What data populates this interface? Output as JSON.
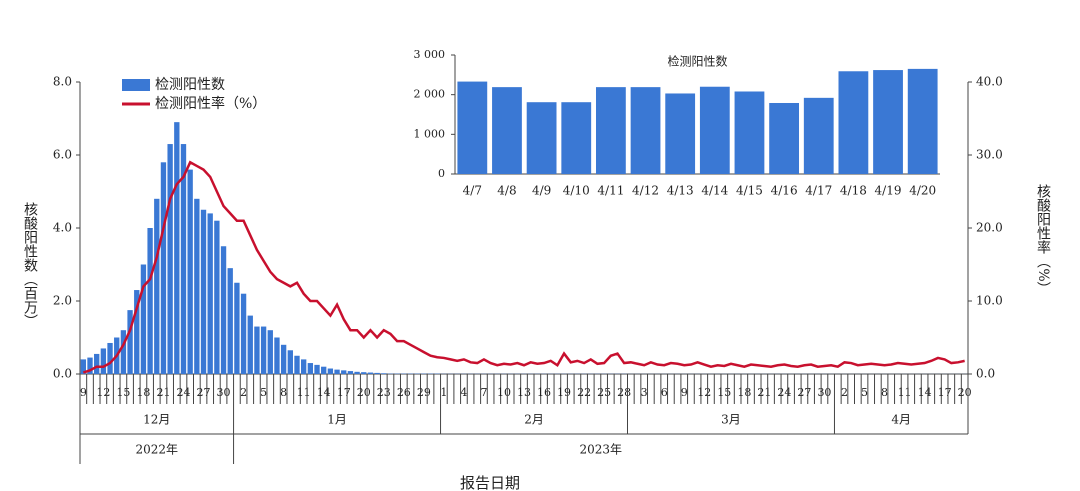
{
  "chart_data": [
    {
      "type": "combo",
      "x_title": "报告日期",
      "y_title": "核酸阳性数（百万）",
      "y2_title": "核酸阳性率（%）",
      "legend": "upper left",
      "categories": [
        "9",
        null,
        null,
        "12",
        null,
        null,
        "15",
        null,
        null,
        "18",
        null,
        null,
        "21",
        null,
        null,
        "24",
        null,
        null,
        "27",
        null,
        null,
        "30",
        null,
        null,
        "2",
        null,
        null,
        "5",
        null,
        null,
        "8",
        null,
        null,
        "11",
        null,
        null,
        "14",
        null,
        null,
        "17",
        null,
        null,
        "20",
        null,
        null,
        "23",
        null,
        null,
        "26",
        null,
        null,
        "29",
        null,
        null,
        "1",
        null,
        null,
        "4",
        null,
        null,
        "7",
        null,
        null,
        "10",
        null,
        null,
        "13",
        null,
        null,
        "16",
        null,
        null,
        "19",
        null,
        null,
        "22",
        null,
        null,
        "25",
        null,
        null,
        "28",
        null,
        null,
        "3",
        null,
        null,
        "6",
        null,
        null,
        "9",
        null,
        null,
        "12",
        null,
        null,
        "15",
        null,
        null,
        "18",
        null,
        null,
        "21",
        null,
        null,
        "24",
        null,
        null,
        "27",
        null,
        null,
        "30",
        null,
        null,
        "2",
        null,
        null,
        "5",
        null,
        null,
        "8",
        null,
        null,
        "11",
        null,
        null,
        "14",
        null,
        null,
        "17",
        null,
        null,
        "20"
      ],
      "months": [
        {
          "label": "12月",
          "count": 23
        },
        {
          "label": "1月",
          "count": 31
        },
        {
          "label": "2月",
          "count": 28
        },
        {
          "label": "3月",
          "count": 31
        },
        {
          "label": "4月",
          "count": 20
        }
      ],
      "years": [
        {
          "label": "2022年",
          "months": 1
        },
        {
          "label": "2023年",
          "months": 4
        }
      ],
      "series": [
        {
          "name": "检测阳性数",
          "color": "#3a78d4",
          "axis": "y",
          "values": [
            0.4,
            0.45,
            0.55,
            0.7,
            0.85,
            1.0,
            1.2,
            1.75,
            2.3,
            3.0,
            4.0,
            4.8,
            5.8,
            6.3,
            6.9,
            6.3,
            5.6,
            4.8,
            4.5,
            4.4,
            4.2,
            3.5,
            2.9,
            2.5,
            2.2,
            1.6,
            1.3,
            1.3,
            1.2,
            1.0,
            0.8,
            0.65,
            0.5,
            0.4,
            0.3,
            0.25,
            0.2,
            0.15,
            0.12,
            0.1,
            0.08,
            0.06,
            0.05,
            0.04,
            0.03,
            0.02,
            0.01,
            0.01,
            0.01,
            0.01,
            0.01,
            0.01,
            0.01,
            0.01,
            0.005,
            0.005,
            0.005,
            0.005,
            0.005,
            0.005,
            0.005,
            0.005,
            0.005,
            0.005,
            0.005,
            0.005,
            0.005,
            0.005,
            0.005,
            0.005,
            0.005,
            0.005,
            0.005,
            0.005,
            0.005,
            0.005,
            0.005,
            0.005,
            0.005,
            0.005,
            0.005,
            0.005,
            0.003,
            0.003,
            0.003,
            0.003,
            0.003,
            0.003,
            0.003,
            0.003,
            0.003,
            0.003,
            0.003,
            0.003,
            0.003,
            0.003,
            0.003,
            0.003,
            0.003,
            0.003,
            0.003,
            0.003,
            0.003,
            0.003,
            0.003,
            0.003,
            0.003,
            0.003,
            0.003,
            0.003,
            0.003,
            0.003,
            0.003,
            0.002,
            0.002,
            0.002,
            0.002,
            0.002,
            0.002,
            0.002,
            0.002,
            0.002,
            0.002,
            0.002,
            0.002,
            0.002,
            0.002,
            0.002,
            0.002,
            0.002,
            0.002,
            0.002,
            0.002
          ]
        },
        {
          "name": "检测阳性率（%）",
          "color": "#c8102e",
          "axis": "y2",
          "values": [
            0.2,
            0.5,
            1,
            1,
            1.5,
            2.5,
            4,
            6,
            9,
            12,
            13,
            16,
            20,
            24,
            26,
            27,
            29,
            28.5,
            28,
            27,
            25,
            23,
            22,
            21,
            21,
            19,
            17,
            15.5,
            14,
            13,
            12.5,
            12,
            12.5,
            11,
            10,
            10,
            9,
            8,
            9.5,
            7.5,
            6,
            6,
            5,
            6,
            5,
            6,
            5.5,
            4.5,
            4.5,
            4,
            3.5,
            3,
            2.5,
            2.3,
            2.2,
            2.0,
            1.8,
            2,
            1.6,
            1.5,
            2,
            1.5,
            1.2,
            1.4,
            1.3,
            1.5,
            1.2,
            1.6,
            1.4,
            1.5,
            1.8,
            1.2,
            2.8,
            1.6,
            1.8,
            1.5,
            2,
            1.4,
            1.5,
            2.5,
            2.8,
            1.5,
            1.6,
            1.4,
            1.2,
            1.6,
            1.3,
            1.2,
            1.5,
            1.4,
            1.2,
            1.3,
            1.6,
            1.3,
            1.0,
            1.2,
            1.1,
            1.4,
            1.2,
            1.0,
            1.3,
            1.2,
            1.1,
            1.0,
            1.2,
            1.3,
            1.1,
            1.0,
            1.2,
            1.3,
            1.0,
            1.1,
            1.2,
            1.0,
            1.6,
            1.5,
            1.2,
            1.3,
            1.4,
            1.3,
            1.2,
            1.3,
            1.5,
            1.4,
            1.3,
            1.4,
            1.5,
            1.8,
            2.2,
            2.0,
            1.5,
            1.6,
            1.8
          ]
        }
      ],
      "ylim": [
        0,
        8
      ],
      "yticks": [
        {
          "value": 0,
          "label": "0.0"
        },
        {
          "value": 2,
          "label": "2.0"
        },
        {
          "value": 4,
          "label": "4.0"
        },
        {
          "value": 6,
          "label": "6.0"
        },
        {
          "value": 8,
          "label": "8.0"
        }
      ],
      "y2lim": [
        0,
        40
      ],
      "y2ticks": [
        {
          "value": 0,
          "label": "0.0"
        },
        {
          "value": 10,
          "label": "10.0"
        },
        {
          "value": 20,
          "label": "20.0"
        },
        {
          "value": 30,
          "label": "30.0"
        },
        {
          "value": 40,
          "label": "40.0"
        }
      ]
    },
    {
      "type": "bar",
      "title": "检测阳性数",
      "color": "#3a78d4",
      "categories": [
        "4/7",
        "4/8",
        "4/9",
        "4/10",
        "4/11",
        "4/12",
        "4/13",
        "4/14",
        "4/15",
        "4/16",
        "4/17",
        "4/18",
        "4/19",
        "4/20"
      ],
      "values": [
        2330,
        2190,
        1810,
        1810,
        2190,
        2190,
        2030,
        2200,
        2080,
        1790,
        1920,
        2590,
        2620,
        2650
      ],
      "ylim": [
        0,
        3000
      ],
      "yticks": [
        0,
        {
          "value": 1000,
          "label": "1 000"
        },
        {
          "value": 2000,
          "label": "2 000"
        },
        {
          "value": 3000,
          "label": "3 000"
        }
      ]
    }
  ]
}
